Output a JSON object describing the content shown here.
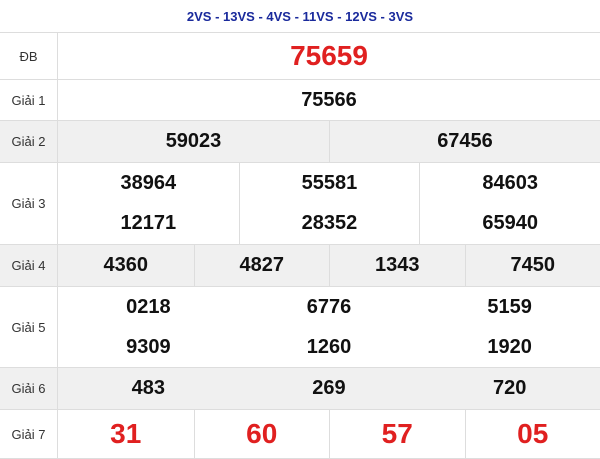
{
  "header": {
    "title": "2VS - 13VS - 4VS - 11VS - 12VS - 3VS"
  },
  "rows": [
    {
      "label": "ĐB",
      "numbers": [
        "75659"
      ]
    },
    {
      "label": "Giải 1",
      "numbers": [
        "75566"
      ]
    },
    {
      "label": "Giải 2",
      "numbers": [
        "59023",
        "67456"
      ]
    },
    {
      "label": "Giải 3",
      "numbers": [
        "38964",
        "55581",
        "84603",
        "12171",
        "28352",
        "65940"
      ]
    },
    {
      "label": "Giải 4",
      "numbers": [
        "4360",
        "4827",
        "1343",
        "7450"
      ]
    },
    {
      "label": "Giải 5",
      "numbers": [
        "0218",
        "6776",
        "5159",
        "9309",
        "1260",
        "1920"
      ]
    },
    {
      "label": "Giải 6",
      "numbers": [
        "483",
        "269",
        "720"
      ]
    },
    {
      "label": "Giải 7",
      "numbers": [
        "31",
        "60",
        "57",
        "05"
      ]
    }
  ]
}
